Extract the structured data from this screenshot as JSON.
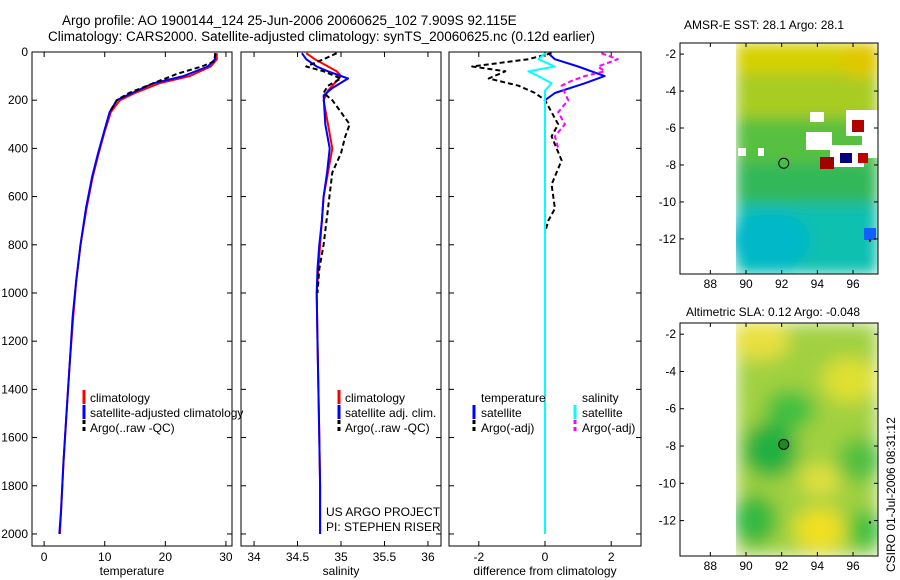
{
  "title_line1": "Argo profile: AO 1900144_124 25-Jun-2006 20060625_102 7.909S 92.115E",
  "title_line2": "Climatology: CARS2000. Satellite-adjusted climatology: synTS_20060625.nc (0.12d earlier)",
  "stamp": "CSIRO 01-Jul-2006 08:31:12",
  "credit_line1": "US ARGO PROJECT",
  "credit_line2": "PI: STEPHEN RISER",
  "colors": {
    "climatology": "#ff0000",
    "satellite": "#0000ff",
    "argo": "#000000",
    "sal_satellite": "#00ffff",
    "sal_argo": "#ff00ff"
  },
  "chart_data": [
    {
      "type": "line",
      "xlabel": "temperature",
      "ylim": [
        2050,
        0
      ],
      "xlim": [
        -2,
        31
      ],
      "xticks": [
        0,
        10,
        20,
        30
      ],
      "yticks": [
        0,
        200,
        400,
        600,
        800,
        1000,
        1200,
        1400,
        1600,
        1800,
        2000
      ],
      "legend": [
        "climatology",
        "satellite-adjusted climatology",
        "Argo(..raw -QC)"
      ],
      "series": [
        {
          "name": "climatology",
          "points": [
            [
              28.5,
              5
            ],
            [
              28.5,
              30
            ],
            [
              27.5,
              60
            ],
            [
              24,
              100
            ],
            [
              19,
              130
            ],
            [
              15,
              170
            ],
            [
              12.5,
              200
            ],
            [
              11,
              250
            ],
            [
              10,
              330
            ],
            [
              9,
              420
            ],
            [
              8,
              520
            ],
            [
              7,
              650
            ],
            [
              6,
              800
            ],
            [
              5.3,
              950
            ],
            [
              4.8,
              1100
            ],
            [
              4.2,
              1300
            ],
            [
              3.7,
              1500
            ],
            [
              3.2,
              1700
            ],
            [
              2.8,
              1900
            ],
            [
              2.6,
              2000
            ]
          ]
        },
        {
          "name": "satellite-adjusted climatology",
          "points": [
            [
              28.2,
              5
            ],
            [
              28.2,
              30
            ],
            [
              27,
              60
            ],
            [
              23,
              100
            ],
            [
              18,
              130
            ],
            [
              14.5,
              170
            ],
            [
              12,
              200
            ],
            [
              10.8,
              250
            ],
            [
              9.9,
              330
            ],
            [
              8.9,
              420
            ],
            [
              7.9,
              520
            ],
            [
              6.9,
              650
            ],
            [
              6,
              800
            ],
            [
              5.3,
              950
            ],
            [
              4.7,
              1100
            ],
            [
              4.2,
              1300
            ],
            [
              3.7,
              1500
            ],
            [
              3.2,
              1700
            ],
            [
              2.8,
              1900
            ],
            [
              2.5,
              2000
            ]
          ]
        },
        {
          "name": "Argo(..raw -QC)",
          "points": [
            [
              28.3,
              5
            ],
            [
              28,
              40
            ],
            [
              26,
              60
            ],
            [
              22,
              90
            ],
            [
              18,
              130
            ],
            [
              14,
              170
            ],
            [
              12,
              200
            ],
            [
              10.8,
              250
            ]
          ]
        }
      ]
    },
    {
      "type": "line",
      "xlabel": "salinity",
      "ylim": [
        2050,
        0
      ],
      "xlim": [
        33.85,
        36.15
      ],
      "xticks": [
        34,
        34.5,
        35,
        35.5,
        36
      ],
      "legend": [
        "climatology",
        "satellite adj. clim.",
        "Argo(..raw -QC)"
      ],
      "series": [
        {
          "name": "climatology",
          "points": [
            [
              34.6,
              5
            ],
            [
              34.7,
              30
            ],
            [
              34.95,
              80
            ],
            [
              35.0,
              100
            ],
            [
              34.85,
              160
            ],
            [
              34.8,
              200
            ],
            [
              34.85,
              300
            ],
            [
              34.9,
              400
            ],
            [
              34.85,
              500
            ],
            [
              34.8,
              600
            ],
            [
              34.78,
              700
            ],
            [
              34.76,
              800
            ],
            [
              34.74,
              900
            ],
            [
              34.72,
              1000
            ],
            [
              34.73,
              1200
            ],
            [
              34.74,
              1400
            ],
            [
              34.75,
              1600
            ],
            [
              34.76,
              1800
            ],
            [
              34.76,
              2000
            ]
          ]
        },
        {
          "name": "satellite adj. clim.",
          "points": [
            [
              34.55,
              5
            ],
            [
              34.6,
              30
            ],
            [
              34.72,
              60
            ],
            [
              34.85,
              80
            ],
            [
              35.08,
              110
            ],
            [
              34.9,
              150
            ],
            [
              34.8,
              180
            ],
            [
              34.82,
              300
            ],
            [
              34.87,
              400
            ],
            [
              34.84,
              500
            ],
            [
              34.8,
              600
            ],
            [
              34.78,
              700
            ],
            [
              34.75,
              800
            ],
            [
              34.73,
              900
            ],
            [
              34.72,
              1000
            ],
            [
              34.73,
              1200
            ],
            [
              34.74,
              1400
            ],
            [
              34.75,
              1600
            ],
            [
              34.76,
              1800
            ],
            [
              34.76,
              2000
            ]
          ]
        },
        {
          "name": "Argo(..raw -QC)",
          "points": [
            [
              34.95,
              5
            ],
            [
              34.8,
              30
            ],
            [
              34.6,
              60
            ],
            [
              34.8,
              80
            ],
            [
              35.0,
              110
            ],
            [
              34.85,
              140
            ],
            [
              34.8,
              170
            ],
            [
              34.9,
              200
            ],
            [
              35.0,
              250
            ],
            [
              35.1,
              300
            ],
            [
              35.05,
              350
            ],
            [
              35.0,
              420
            ],
            [
              34.9,
              500
            ],
            [
              34.85,
              650
            ],
            [
              34.8,
              800
            ],
            [
              34.75,
              900
            ],
            [
              34.73,
              1000
            ]
          ]
        }
      ]
    },
    {
      "type": "line",
      "xlabel": "difference from climatology",
      "ylim": [
        2050,
        0
      ],
      "xlim": [
        -2.9,
        2.9
      ],
      "xticks": [
        -2,
        0,
        2
      ],
      "legend_groups": [
        {
          "header": "temperature",
          "items": [
            "satellite",
            "Argo(-adj)"
          ]
        },
        {
          "header": "salinity",
          "items": [
            "satellite",
            "Argo(-adj)"
          ]
        }
      ],
      "series": [
        {
          "name": "temperature satellite",
          "points": [
            [
              0.1,
              5
            ],
            [
              0.3,
              30
            ],
            [
              1,
              60
            ],
            [
              1.8,
              100
            ],
            [
              1.2,
              130
            ],
            [
              0.3,
              170
            ],
            [
              0,
              200
            ],
            [
              0,
              400
            ],
            [
              0,
              800
            ],
            [
              0,
              1200
            ],
            [
              0,
              1600
            ],
            [
              0,
              2000
            ]
          ]
        },
        {
          "name": "temperature Argo(-adj)",
          "points": [
            [
              0.2,
              5
            ],
            [
              -0.5,
              30
            ],
            [
              -2.2,
              60
            ],
            [
              -1.2,
              80
            ],
            [
              -1.7,
              110
            ],
            [
              -0.8,
              140
            ],
            [
              -0.3,
              170
            ],
            [
              0,
              200
            ],
            [
              0.4,
              300
            ],
            [
              0.2,
              350
            ],
            [
              0.5,
              450
            ],
            [
              0.2,
              550
            ],
            [
              0.3,
              650
            ],
            [
              0.1,
              700
            ],
            [
              0,
              750
            ]
          ]
        },
        {
          "name": "salinity satellite",
          "points": [
            [
              0,
              5
            ],
            [
              -0.2,
              30
            ],
            [
              0.3,
              60
            ],
            [
              -0.5,
              80
            ],
            [
              -0.2,
              100
            ],
            [
              0.2,
              130
            ],
            [
              0,
              160
            ],
            [
              0,
              200
            ],
            [
              0,
              400
            ],
            [
              0,
              800
            ],
            [
              0,
              1200
            ],
            [
              0,
              1600
            ],
            [
              0,
              2000
            ]
          ]
        },
        {
          "name": "salinity Argo(-adj)",
          "points": [
            [
              1.7,
              5
            ],
            [
              2.2,
              30
            ],
            [
              1.6,
              60
            ],
            [
              1.8,
              80
            ],
            [
              1.2,
              100
            ],
            [
              0.8,
              120
            ],
            [
              0.5,
              140
            ],
            [
              0.6,
              170
            ],
            [
              0.7,
              200
            ],
            [
              0.4,
              250
            ],
            [
              0.6,
              300
            ],
            [
              0.3,
              350
            ],
            [
              0.4,
              400
            ]
          ]
        }
      ]
    },
    {
      "type": "heatmap",
      "title": "AMSR-E SST: 28.1 Argo: 28.1",
      "xlim": [
        86.3,
        97.4
      ],
      "ylim": [
        -13.9,
        -1.4
      ],
      "xticks": [
        88,
        90,
        92,
        94,
        96
      ],
      "yticks": [
        -2,
        -4,
        -6,
        -8,
        -10,
        -12
      ],
      "marker": {
        "lon": 92.115,
        "lat": -7.909
      }
    },
    {
      "type": "heatmap",
      "title": "Altimetric SLA: 0.12 Argo: -0.048",
      "xlim": [
        86.3,
        97.4
      ],
      "ylim": [
        -13.9,
        -1.4
      ],
      "xticks": [
        88,
        90,
        92,
        94,
        96
      ],
      "yticks": [
        -2,
        -4,
        -6,
        -8,
        -10,
        -12
      ],
      "marker": {
        "lon": 92.115,
        "lat": -7.909
      }
    }
  ]
}
